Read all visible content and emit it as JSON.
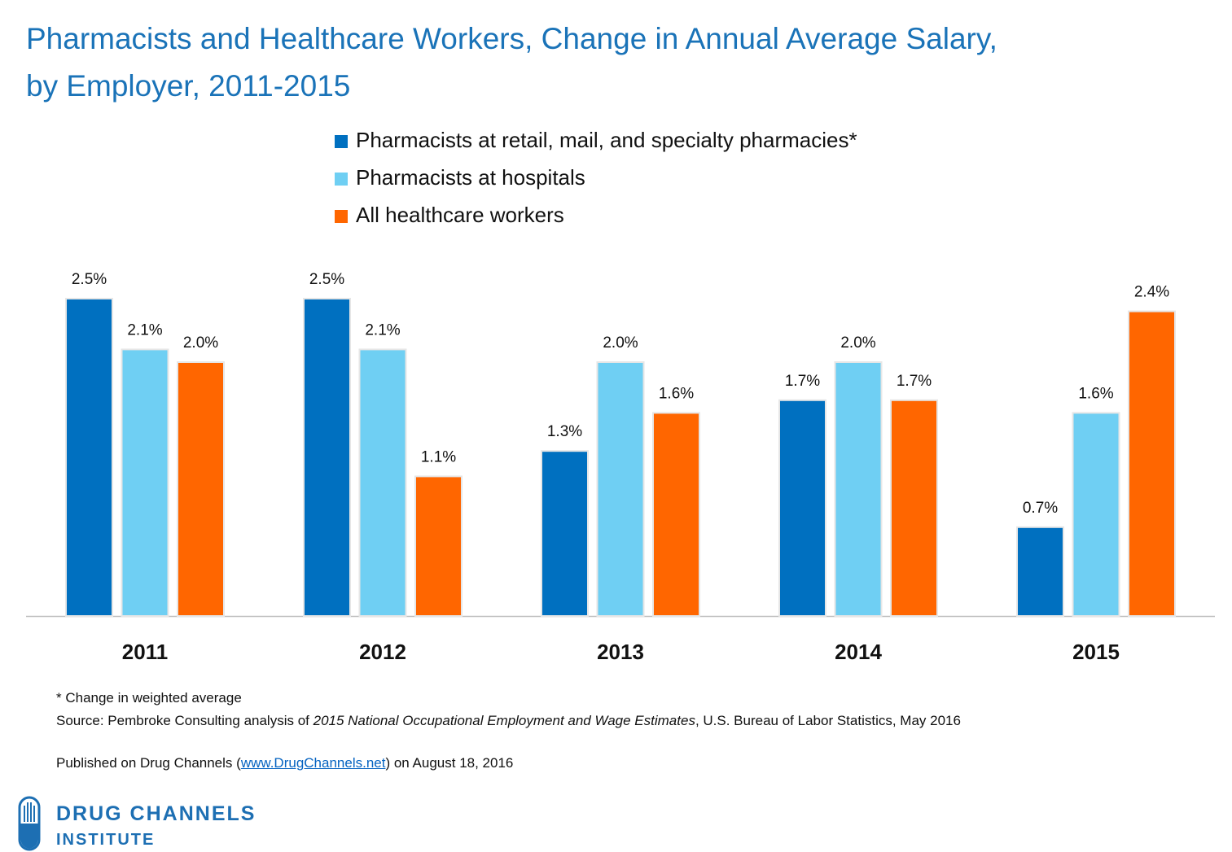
{
  "chart_data": {
    "type": "bar",
    "title": [
      "Pharmacists and Healthcare Workers, Change in Annual Average Salary,",
      "by Employer, 2011-2015"
    ],
    "categories": [
      "2011",
      "2012",
      "2013",
      "2014",
      "2015"
    ],
    "series": [
      {
        "name": "Pharmacists at retail, mail, and specialty pharmacies*",
        "color": "#0070c0",
        "values": [
          2.5,
          2.5,
          1.3,
          1.7,
          0.7
        ],
        "value_labels": [
          "2.5%",
          "2.5%",
          "1.3%",
          "1.7%",
          "0.7%"
        ]
      },
      {
        "name": "Pharmacists at hospitals",
        "color": "#6fcff3",
        "values": [
          2.1,
          2.1,
          2.0,
          2.0,
          1.6
        ],
        "value_labels": [
          "2.1%",
          "2.1%",
          "2.0%",
          "2.0%",
          "1.6%"
        ]
      },
      {
        "name": "All healthcare workers",
        "color": "#ff6600",
        "values": [
          2.0,
          1.1,
          1.6,
          1.7,
          2.4
        ],
        "value_labels": [
          "2.0%",
          "1.1%",
          "1.6%",
          "1.7%",
          "2.4%"
        ]
      }
    ]
  },
  "footnotes": {
    "note": "* Change in weighted average",
    "source": [
      "Source: Pembroke Consulting analysis of ",
      "2015 National Occupational Employment and Wage Estimates",
      ", U.S. Bureau of Labor Statistics, May 2016"
    ],
    "published": [
      "Published on Drug Channels (",
      "www.DrugChannels.net",
      ") on August 18, 2016"
    ]
  },
  "logo": {
    "line1": "DRUG CHANNELS",
    "line2": "INSTITUTE"
  }
}
